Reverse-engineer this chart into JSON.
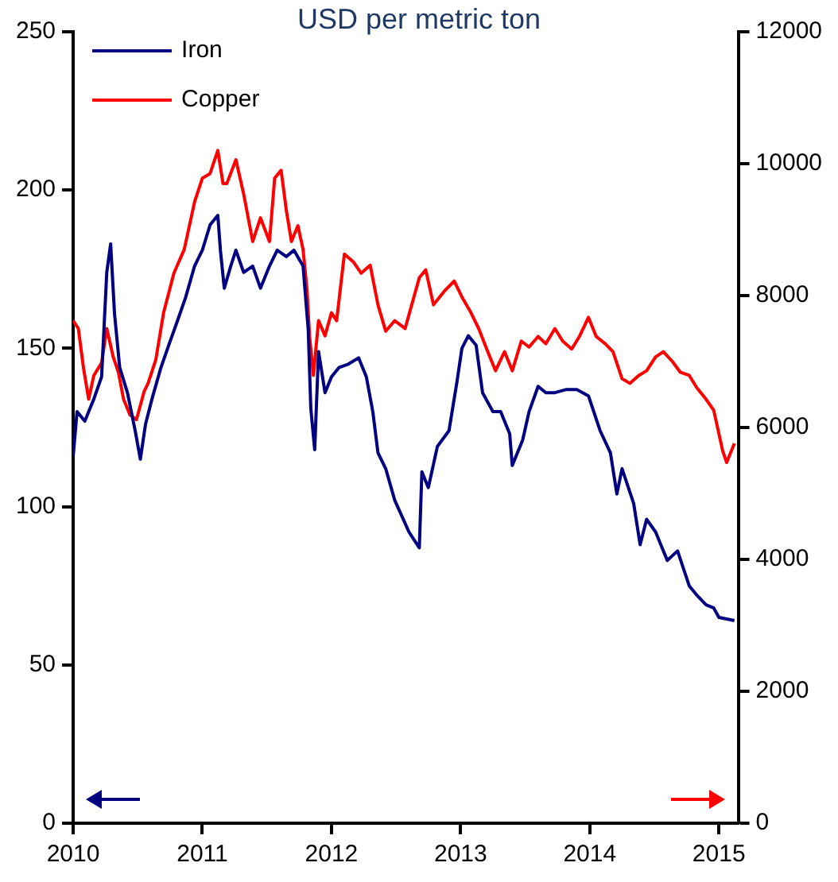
{
  "chart_data": {
    "type": "line",
    "title": "USD per metric ton",
    "xlim": [
      2010,
      2015.15
    ],
    "xticks": [
      2010,
      2011,
      2012,
      2013,
      2014,
      2015
    ],
    "ylim": [
      0,
      250
    ],
    "yticks": [
      0,
      50,
      100,
      150,
      200,
      250
    ],
    "y2lim": [
      0,
      12000
    ],
    "y2ticks": [
      0,
      2000,
      4000,
      6000,
      8000,
      10000,
      12000
    ],
    "legend": "top left",
    "grid": false,
    "marker": "none",
    "line_style": "solid",
    "series": [
      {
        "name": "Iron",
        "color": "#000080",
        "axis": "y",
        "x": [
          2010.0,
          2010.03,
          2010.09,
          2010.16,
          2010.22,
          2010.26,
          2010.29,
          2010.32,
          2010.36,
          2010.42,
          2010.48,
          2010.52,
          2010.56,
          2010.61,
          2010.68,
          2010.74,
          2010.81,
          2010.87,
          2010.94,
          2011.0,
          2011.06,
          2011.12,
          2011.14,
          2011.17,
          2011.22,
          2011.26,
          2011.32,
          2011.39,
          2011.45,
          2011.52,
          2011.58,
          2011.65,
          2011.71,
          2011.78,
          2011.82,
          2011.84,
          2011.87,
          2011.9,
          2011.95,
          2012.0,
          2012.06,
          2012.13,
          2012.21,
          2012.27,
          2012.32,
          2012.36,
          2012.42,
          2012.49,
          2012.6,
          2012.68,
          2012.7,
          2012.75,
          2012.82,
          2012.91,
          2012.97,
          2013.01,
          2013.06,
          2013.12,
          2013.17,
          2013.25,
          2013.31,
          2013.38,
          2013.4,
          2013.48,
          2013.53,
          2013.6,
          2013.66,
          2013.73,
          2013.82,
          2013.9,
          2013.99,
          2014.08,
          2014.16,
          2014.21,
          2014.25,
          2014.34,
          2014.39,
          2014.44,
          2014.51,
          2014.6,
          2014.68,
          2014.77,
          2014.83,
          2014.9,
          2014.96,
          2015.0,
          2015.12
        ],
        "values": [
          116,
          130,
          127,
          134,
          141,
          174,
          183,
          161,
          144,
          136,
          124,
          115,
          126,
          134,
          144,
          151,
          159,
          166,
          176,
          181,
          189,
          192,
          181,
          169,
          176,
          181,
          174,
          176,
          169,
          176,
          181,
          179,
          181,
          176,
          156,
          131,
          118,
          149,
          136,
          141,
          144,
          145,
          147,
          141,
          130,
          117,
          112,
          102,
          92,
          87,
          111,
          106,
          119,
          124,
          139,
          150,
          154,
          151,
          136,
          130,
          130,
          123,
          113,
          121,
          130,
          138,
          136,
          136,
          137,
          137,
          135,
          124,
          117,
          104,
          112,
          101,
          88,
          96,
          92,
          83,
          86,
          75,
          72,
          69,
          68,
          65,
          64
        ]
      },
      {
        "name": "Copper",
        "color": "#ff0000",
        "axis": "y2",
        "x": [
          2010.0,
          2010.04,
          2010.08,
          2010.12,
          2010.16,
          2010.22,
          2010.26,
          2010.31,
          2010.35,
          2010.39,
          2010.44,
          2010.49,
          2010.55,
          2010.58,
          2010.64,
          2010.7,
          2010.78,
          2010.86,
          2010.94,
          2011.0,
          2011.06,
          2011.12,
          2011.16,
          2011.19,
          2011.26,
          2011.32,
          2011.39,
          2011.45,
          2011.52,
          2011.56,
          2011.61,
          2011.65,
          2011.69,
          2011.74,
          2011.78,
          2011.81,
          2011.83,
          2011.86,
          2011.9,
          2011.95,
          2012.0,
          2012.04,
          2012.1,
          2012.17,
          2012.23,
          2012.3,
          2012.36,
          2012.42,
          2012.49,
          2012.57,
          2012.68,
          2012.73,
          2012.79,
          2012.88,
          2012.95,
          2013.01,
          2013.08,
          2013.14,
          2013.21,
          2013.27,
          2013.34,
          2013.4,
          2013.47,
          2013.53,
          2013.6,
          2013.66,
          2013.73,
          2013.79,
          2013.86,
          2013.92,
          2013.99,
          2014.05,
          2014.12,
          2014.18,
          2014.25,
          2014.31,
          2014.38,
          2014.44,
          2014.51,
          2014.57,
          2014.64,
          2014.7,
          2014.77,
          2014.83,
          2014.9,
          2014.96,
          2015.03,
          2015.06,
          2015.12
        ],
        "values": [
          7620,
          7500,
          6900,
          6430,
          6790,
          6980,
          7500,
          7070,
          6840,
          6430,
          6190,
          6120,
          6550,
          6670,
          7030,
          7740,
          8340,
          8700,
          9420,
          9780,
          9850,
          10200,
          9700,
          9700,
          10060,
          9540,
          8820,
          9180,
          8820,
          9780,
          9900,
          9300,
          8820,
          9060,
          8700,
          8100,
          7390,
          6790,
          7620,
          7390,
          7740,
          7620,
          8630,
          8510,
          8340,
          8460,
          7860,
          7460,
          7620,
          7500,
          8270,
          8390,
          7860,
          8080,
          8220,
          7980,
          7740,
          7500,
          7150,
          6860,
          7150,
          6860,
          7310,
          7220,
          7380,
          7270,
          7500,
          7310,
          7190,
          7380,
          7670,
          7380,
          7270,
          7150,
          6740,
          6670,
          6790,
          6860,
          7070,
          7150,
          7000,
          6840,
          6790,
          6600,
          6430,
          6260,
          5640,
          5470,
          5760
        ]
      }
    ]
  }
}
